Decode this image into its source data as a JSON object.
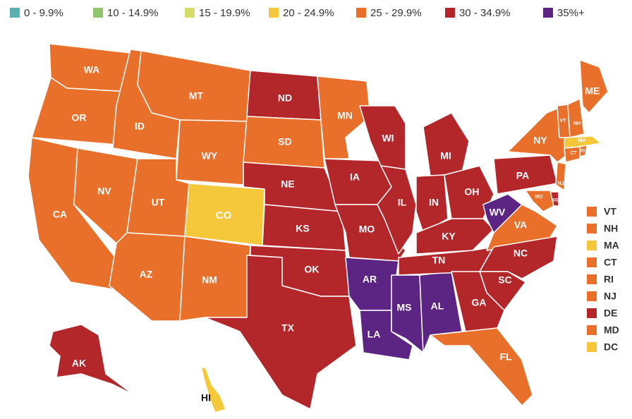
{
  "legend": [
    {
      "label": "0 - 9.9%",
      "color": "#5bb0b2"
    },
    {
      "label": "10 - 14.9%",
      "color": "#8fc66b"
    },
    {
      "label": "15 - 19.9%",
      "color": "#d5dc6b"
    },
    {
      "label": "20 - 24.9%",
      "color": "#f5c73a"
    },
    {
      "label": "25 - 29.9%",
      "color": "#e8702a"
    },
    {
      "label": "30 - 34.9%",
      "color": "#b3262a"
    },
    {
      "label": "35%+",
      "color": "#5c2483"
    }
  ],
  "states": [
    {
      "label": "WA",
      "color": "#e8702a"
    },
    {
      "label": "OR",
      "color": "#e8702a"
    },
    {
      "label": "CA",
      "color": "#e8702a"
    },
    {
      "label": "NV",
      "color": "#e8702a"
    },
    {
      "label": "ID",
      "color": "#e8702a"
    },
    {
      "label": "MT",
      "color": "#e8702a"
    },
    {
      "label": "WY",
      "color": "#e8702a"
    },
    {
      "label": "UT",
      "color": "#e8702a"
    },
    {
      "label": "CO",
      "color": "#f5c73a"
    },
    {
      "label": "AZ",
      "color": "#e8702a"
    },
    {
      "label": "NM",
      "color": "#e8702a"
    },
    {
      "label": "ND",
      "color": "#b3262a"
    },
    {
      "label": "SD",
      "color": "#e8702a"
    },
    {
      "label": "NE",
      "color": "#b3262a"
    },
    {
      "label": "KS",
      "color": "#b3262a"
    },
    {
      "label": "OK",
      "color": "#b3262a"
    },
    {
      "label": "TX",
      "color": "#b3262a"
    },
    {
      "label": "MN",
      "color": "#e8702a"
    },
    {
      "label": "IA",
      "color": "#b3262a"
    },
    {
      "label": "MO",
      "color": "#b3262a"
    },
    {
      "label": "AR",
      "color": "#5c2483"
    },
    {
      "label": "LA",
      "color": "#5c2483"
    },
    {
      "label": "MS",
      "color": "#5c2483"
    },
    {
      "label": "AL",
      "color": "#5c2483"
    },
    {
      "label": "WI",
      "color": "#b3262a"
    },
    {
      "label": "IL",
      "color": "#b3262a"
    },
    {
      "label": "MI",
      "color": "#b3262a"
    },
    {
      "label": "IN",
      "color": "#b3262a"
    },
    {
      "label": "OH",
      "color": "#b3262a"
    },
    {
      "label": "KY",
      "color": "#b3262a"
    },
    {
      "label": "TN",
      "color": "#b3262a"
    },
    {
      "label": "WV",
      "color": "#5c2483"
    },
    {
      "label": "VA",
      "color": "#e8702a"
    },
    {
      "label": "NC",
      "color": "#b3262a"
    },
    {
      "label": "SC",
      "color": "#b3262a"
    },
    {
      "label": "GA",
      "color": "#b3262a"
    },
    {
      "label": "FL",
      "color": "#e8702a"
    },
    {
      "label": "PA",
      "color": "#b3262a"
    },
    {
      "label": "NY",
      "color": "#e8702a"
    },
    {
      "label": "VT",
      "color": "#e8702a"
    },
    {
      "label": "NH",
      "color": "#e8702a"
    },
    {
      "label": "ME",
      "color": "#e8702a"
    },
    {
      "label": "MA",
      "color": "#f5c73a"
    },
    {
      "label": "CT",
      "color": "#e8702a"
    },
    {
      "label": "RI",
      "color": "#e8702a"
    },
    {
      "label": "NJ",
      "color": "#e8702a"
    },
    {
      "label": "DE",
      "color": "#b3262a"
    },
    {
      "label": "MD",
      "color": "#e8702a"
    },
    {
      "label": "AK",
      "color": "#b3262a"
    },
    {
      "label": "HI",
      "color": "#f5c73a"
    }
  ],
  "small_states": [
    {
      "label": "VT",
      "color": "#e8702a"
    },
    {
      "label": "NH",
      "color": "#e8702a"
    },
    {
      "label": "MA",
      "color": "#f5c73a"
    },
    {
      "label": "CT",
      "color": "#e8702a"
    },
    {
      "label": "RI",
      "color": "#e8702a"
    },
    {
      "label": "NJ",
      "color": "#e8702a"
    },
    {
      "label": "DE",
      "color": "#b3262a"
    },
    {
      "label": "MD",
      "color": "#e8702a"
    },
    {
      "label": "DC",
      "color": "#f5c73a"
    }
  ]
}
